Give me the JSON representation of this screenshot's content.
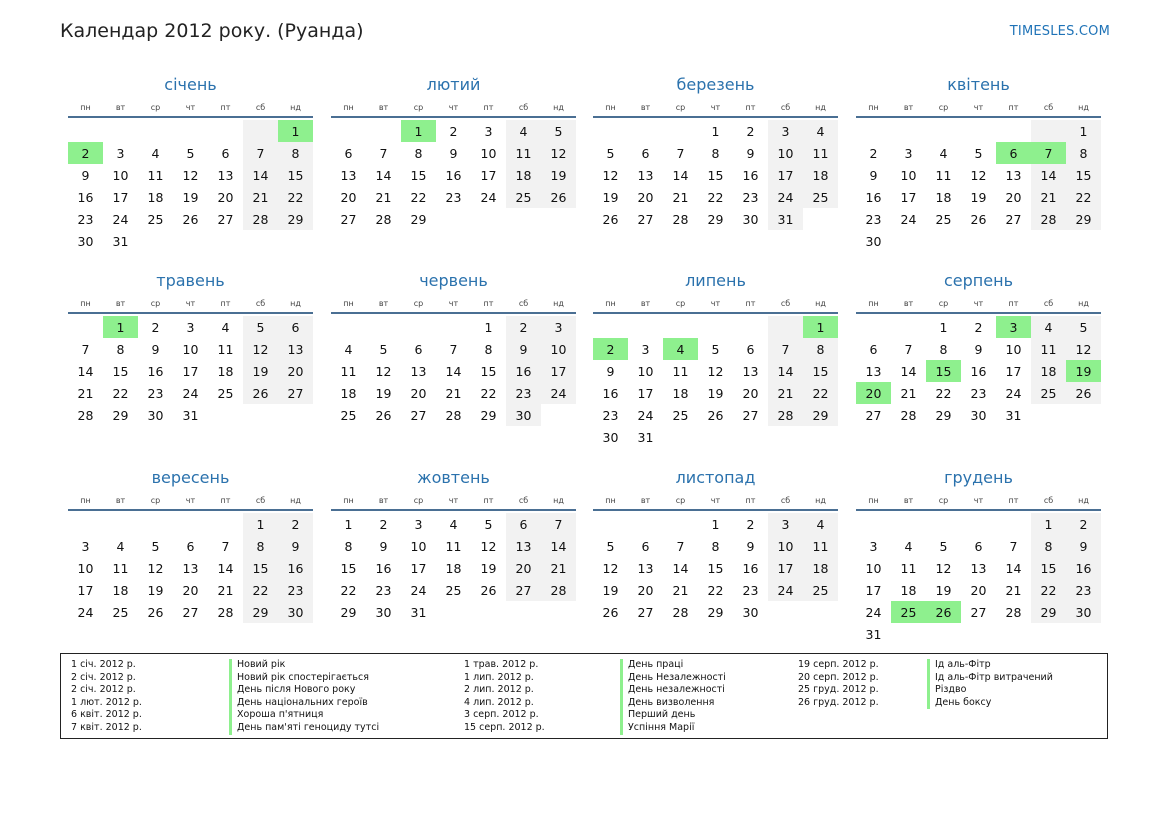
{
  "title": "Календар 2012 року. (Руанда)",
  "site": "TIMESLES.COM",
  "weekdays": [
    "пн",
    "вт",
    "ср",
    "чт",
    "пт",
    "сб",
    "нд"
  ],
  "colors": {
    "holiday": "#8ef08e",
    "weekend": "#f2f2f2",
    "month_name": "#2b72ad",
    "rule": "#4a6f93"
  },
  "months": [
    {
      "name": "січень",
      "offset": 6,
      "days": 31,
      "holidays": [
        1,
        2
      ]
    },
    {
      "name": "лютий",
      "offset": 2,
      "days": 29,
      "holidays": [
        1
      ]
    },
    {
      "name": "березень",
      "offset": 3,
      "days": 31,
      "holidays": []
    },
    {
      "name": "квітень",
      "offset": 6,
      "days": 30,
      "holidays": [
        6,
        7
      ]
    },
    {
      "name": "травень",
      "offset": 1,
      "days": 31,
      "holidays": [
        1
      ]
    },
    {
      "name": "червень",
      "offset": 4,
      "days": 30,
      "holidays": []
    },
    {
      "name": "липень",
      "offset": 6,
      "days": 31,
      "holidays": [
        1,
        2,
        4
      ]
    },
    {
      "name": "серпень",
      "offset": 2,
      "days": 31,
      "holidays": [
        3,
        15,
        19,
        20
      ]
    },
    {
      "name": "вересень",
      "offset": 5,
      "days": 30,
      "holidays": []
    },
    {
      "name": "жовтень",
      "offset": 0,
      "days": 31,
      "holidays": []
    },
    {
      "name": "листопад",
      "offset": 3,
      "days": 30,
      "holidays": []
    },
    {
      "name": "грудень",
      "offset": 5,
      "days": 31,
      "holidays": [
        25,
        26
      ]
    }
  ],
  "legend": {
    "col1": [
      {
        "date": "1 січ. 2012 р.",
        "name": "Новий рік"
      },
      {
        "date": "2 січ. 2012 р.",
        "name": "Новий рік спостерігається"
      },
      {
        "date": "2 січ. 2012 р.",
        "name": "День після Нового року"
      },
      {
        "date": "1 лют. 2012 р.",
        "name": "День національних героїв"
      },
      {
        "date": "6 квіт. 2012 р.",
        "name": "Хороша п'ятниця"
      },
      {
        "date": "7 квіт. 2012 р.",
        "name": "День пам'яті геноциду тутсі"
      }
    ],
    "col2": [
      {
        "date": "1 трав. 2012 р.",
        "name": "День праці"
      },
      {
        "date": "1 лип. 2012 р.",
        "name": "День Незалежності"
      },
      {
        "date": "2 лип. 2012 р.",
        "name": "День незалежності"
      },
      {
        "date": "4 лип. 2012 р.",
        "name": "День визволення"
      },
      {
        "date": "3 серп. 2012 р.",
        "name": "Перший день"
      },
      {
        "date": "15 серп. 2012 р.",
        "name": "Успіння Марії"
      }
    ],
    "col3": [
      {
        "date": "19 серп. 2012 р.",
        "name": "Ід аль-Фітр"
      },
      {
        "date": "20 серп. 2012 р.",
        "name": "Ід аль-Фітр витрачений"
      },
      {
        "date": "25 груд. 2012 р.",
        "name": "Різдво"
      },
      {
        "date": "26 груд. 2012 р.",
        "name": "День боксу"
      }
    ]
  }
}
